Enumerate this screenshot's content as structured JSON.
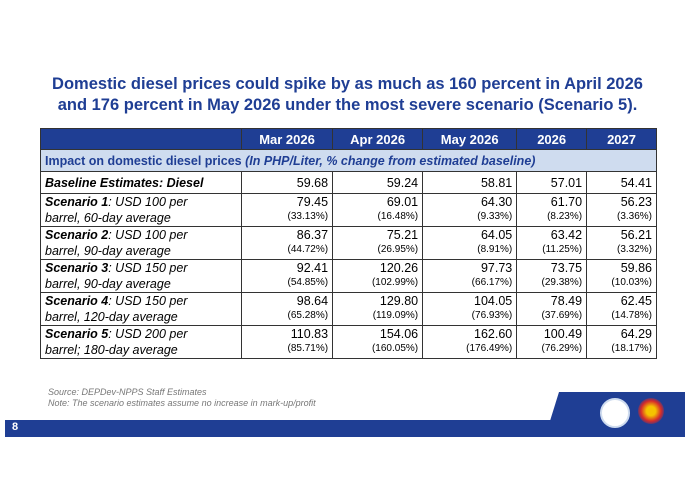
{
  "title_line1": "Domestic diesel prices could spike by as much as 160 percent in April 2026",
  "title_line2": "and 176 percent in May 2026 under the most severe scenario (Scenario 5).",
  "columns": [
    "Mar 2026",
    "Apr 2026",
    "May 2026",
    "2026",
    "2027"
  ],
  "subheader_bold": "Impact on domestic diesel prices ",
  "subheader_italic": "(In PHP/Liter, % change from estimated baseline)",
  "baseline": {
    "label": "Baseline Estimates: Diesel",
    "values": [
      "59.68",
      "59.24",
      "58.81",
      "57.01",
      "54.41"
    ]
  },
  "scenarios": [
    {
      "name": "Scenario 1",
      "desc1": ": USD 100 per",
      "desc2": "barrel, 60-day average",
      "values": [
        "79.45",
        "69.01",
        "64.30",
        "61.70",
        "56.23"
      ],
      "pcts": [
        "(33.13%)",
        "(16.48%)",
        "(9.33%)",
        "(8.23%)",
        "(3.36%)"
      ]
    },
    {
      "name": "Scenario 2",
      "desc1": ": USD 100 per",
      "desc2": "barrel, 90-day average",
      "values": [
        "86.37",
        "75.21",
        "64.05",
        "63.42",
        "56.21"
      ],
      "pcts": [
        "(44.72%)",
        "(26.95%)",
        "(8.91%)",
        "(11.25%)",
        "(3.32%)"
      ]
    },
    {
      "name": "Scenario 3",
      "desc1": ": USD 150 per",
      "desc2": "barrel, 90-day average",
      "values": [
        "92.41",
        "120.26",
        "97.73",
        "73.75",
        "59.86"
      ],
      "pcts": [
        "(54.85%)",
        "(102.99%)",
        "(66.17%)",
        "(29.38%)",
        "(10.03%)"
      ]
    },
    {
      "name": "Scenario 4",
      "desc1": ": USD 150 per",
      "desc2": "barrel, 120-day average",
      "values": [
        "98.64",
        "129.80",
        "104.05",
        "78.49",
        "62.45"
      ],
      "pcts": [
        "(65.28%)",
        "(119.09%)",
        "(76.93%)",
        "(37.69%)",
        "(14.78%)"
      ]
    },
    {
      "name": "Scenario 5",
      "desc1": ": USD 200 per",
      "desc2": "barrel; 180-day average",
      "values": [
        "110.83",
        "154.06",
        "162.60",
        "100.49",
        "64.29"
      ],
      "pcts": [
        "(85.71%)",
        "(160.05%)",
        "(176.49%)",
        "(76.29%)",
        "(18.17%)"
      ]
    }
  ],
  "source": "Source: DEPDev-NPPS Staff Estimates",
  "note": "Note: The scenario estimates assume no increase in mark-up/profit",
  "page_number": "8",
  "colors": {
    "primary": "#1f3e94",
    "subheader_bg": "#cfdcef"
  }
}
